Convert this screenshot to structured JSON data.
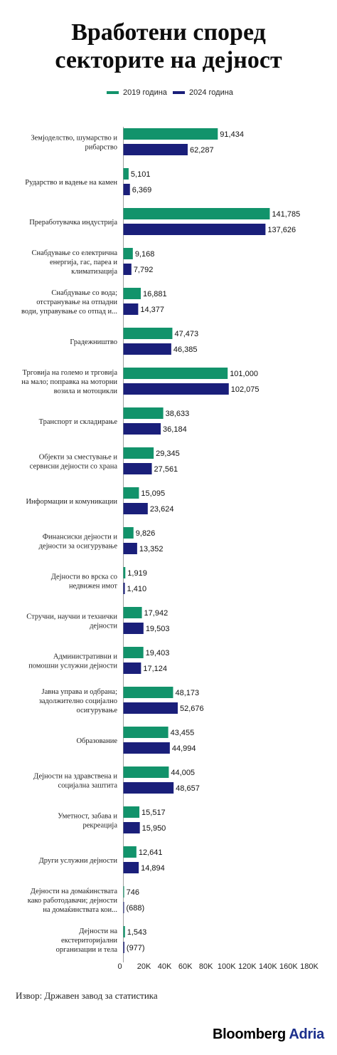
{
  "header": {
    "title_line1": "Вработени според",
    "title_line2": "секторите на дејност"
  },
  "legend": {
    "series_2019": "2019 година",
    "series_2024": "2024 година"
  },
  "colors": {
    "series_2019": "#12936b",
    "series_2024": "#1a1f7a"
  },
  "chart_data": {
    "type": "bar",
    "orientation": "horizontal",
    "title": "Вработени според секторите на дејност",
    "categories": [
      [
        "Земјоделство, шумарство и",
        "рибарство"
      ],
      [
        "Рударство и вадење на камен"
      ],
      [
        "Преработувачка индустрија"
      ],
      [
        "Снабдување со електрична",
        "енергија, гас, пареа и",
        "климатизација"
      ],
      [
        "Снабдување со вода;",
        "отстранување на отпадни",
        "води, управување со отпад и..."
      ],
      [
        "Градежништво"
      ],
      [
        "Трговија на големо и трговија",
        "на мало; поправка на моторни",
        "возила и мотоцикли"
      ],
      [
        "Транспорт и складирање"
      ],
      [
        "Објекти за сместување и",
        "сервисни дејности со храна"
      ],
      [
        "Информации и комуникации"
      ],
      [
        "Финансиски дејности и",
        "дејности за осигурување"
      ],
      [
        "Дејности во врска со",
        "недвижен имот"
      ],
      [
        "Стручни, научни и технички",
        "дејности"
      ],
      [
        "Административни и",
        "помошни услужни дејности"
      ],
      [
        "Јавна управа и одбрана;",
        "задолжително социјално",
        "осигурување"
      ],
      [
        "Образование"
      ],
      [
        "Дејности на здравствена и",
        "социјална заштита"
      ],
      [
        "Уметност, забава и",
        "рекреација"
      ],
      [
        "Други услужни дејности"
      ],
      [
        "Дејности на домаќинствата",
        "како работодавачи; дејности",
        "на домаќинствата кои..."
      ],
      [
        "Дејности на",
        "екстериторијални",
        "организации и тела"
      ]
    ],
    "series": [
      {
        "name": "2019 година",
        "values": [
          91434,
          5101,
          141785,
          9168,
          16881,
          47473,
          101000,
          38633,
          29345,
          15095,
          9826,
          1919,
          17942,
          19403,
          48173,
          43455,
          44005,
          15517,
          12641,
          746,
          1543
        ],
        "labels": [
          "91,434",
          "5,101",
          "141,785",
          "9,168",
          "16,881",
          "47,473",
          "101,000",
          "38,633",
          "29,345",
          "15,095",
          "9,826",
          "1,919",
          "17,942",
          "19,403",
          "48,173",
          "43,455",
          "44,005",
          "15,517",
          "12,641",
          "746",
          "1,543"
        ]
      },
      {
        "name": "2024 година",
        "values": [
          62287,
          6369,
          137626,
          7792,
          14377,
          46385,
          102075,
          36184,
          27561,
          23624,
          13352,
          1410,
          19503,
          17124,
          52676,
          44994,
          48657,
          15950,
          14894,
          688,
          977
        ],
        "labels": [
          "62,287",
          "6,369",
          "137,626",
          "7,792",
          "14,377",
          "46,385",
          "102,075",
          "36,184",
          "27,561",
          "23,624",
          "13,352",
          "1,410",
          "19,503",
          "17,124",
          "52,676",
          "44,994",
          "48,657",
          "15,950",
          "14,894",
          "(688)",
          "(977)"
        ]
      }
    ],
    "x_ticks": [
      0,
      20000,
      40000,
      60000,
      80000,
      100000,
      120000,
      140000,
      160000,
      180000
    ],
    "x_tick_labels": [
      "0",
      "20K",
      "40K",
      "60K",
      "80K",
      "100K",
      "120K",
      "140K",
      "160K",
      "180K"
    ],
    "xlim": [
      0,
      180000
    ],
    "grid": false,
    "legend_position": "top"
  },
  "footer": {
    "source": "Извор: Државен завод за статистика",
    "logo_main": "Bloomberg",
    "logo_sub": "Adria"
  }
}
